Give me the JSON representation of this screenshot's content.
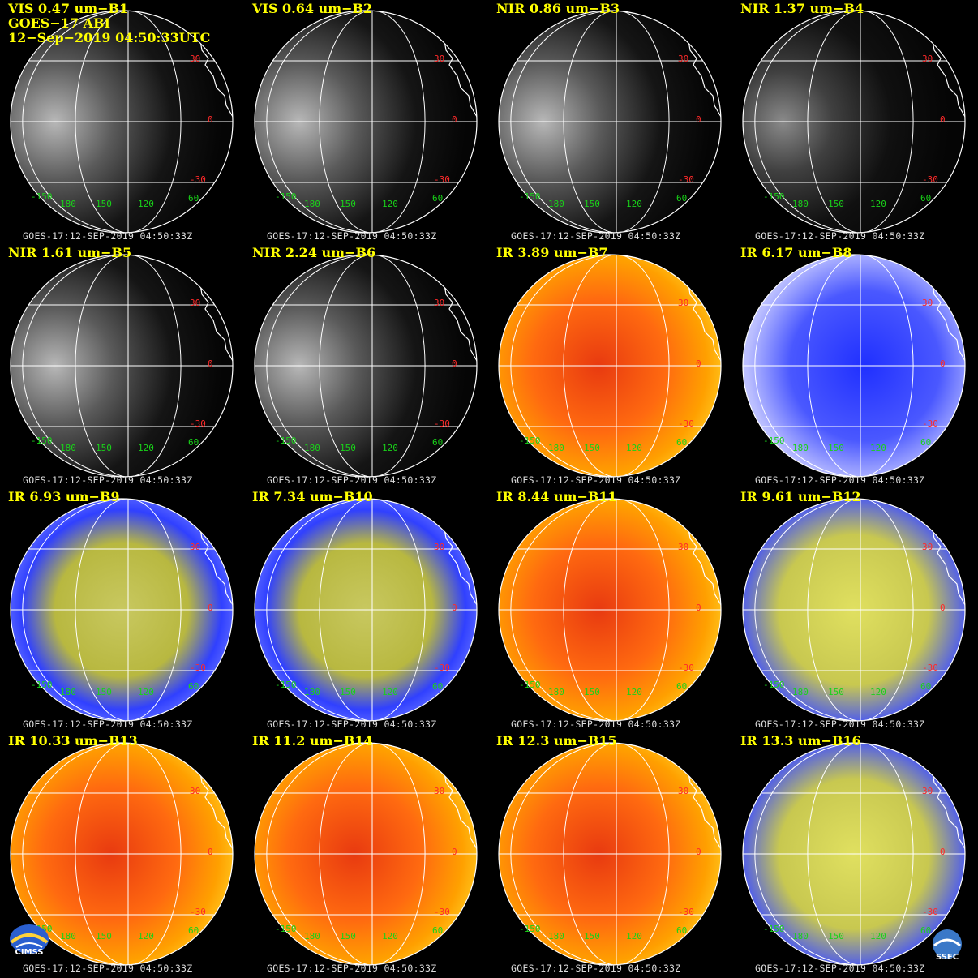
{
  "header": {
    "satellite": "GOES−17 ABI",
    "datetime": "12−Sep−2019 04:50:33UTC"
  },
  "timestamp": "GOES-17:12-SEP-2019 04:50:33Z",
  "grid_labels": {
    "lat": [
      "30",
      "0",
      "-30"
    ],
    "lon": [
      "-150",
      "180",
      "150",
      "120",
      "60"
    ]
  },
  "panels": [
    {
      "label": "VIS 0.47 um−B1",
      "palette": "vis"
    },
    {
      "label": "VIS 0.64 um−B2",
      "palette": "vis"
    },
    {
      "label": "NIR 0.86 um−B3",
      "palette": "vis"
    },
    {
      "label": "NIR 1.37 um−B4",
      "palette": "visdark"
    },
    {
      "label": "NIR 1.61 um−B5",
      "palette": "vis"
    },
    {
      "label": "NIR 2.24 um−B6",
      "palette": "vis"
    },
    {
      "label": "IR 3.89 um−B7",
      "palette": "irwarm"
    },
    {
      "label": "IR 6.17 um−B8",
      "palette": "wv8"
    },
    {
      "label": "IR 6.93 um−B9",
      "palette": "wv"
    },
    {
      "label": "IR 7.34 um−B10",
      "palette": "wv"
    },
    {
      "label": "IR 8.44 um−B11",
      "palette": "irwarm"
    },
    {
      "label": "IR 9.61 um−B12",
      "palette": "wv12"
    },
    {
      "label": "IR 10.33 um−B13",
      "palette": "irwarm"
    },
    {
      "label": "IR 11.2 um−B14",
      "palette": "irwarm"
    },
    {
      "label": "IR 12.3 um−B15",
      "palette": "irwarm"
    },
    {
      "label": "IR 13.3 um−B16",
      "palette": "wv12"
    }
  ],
  "logos": {
    "left": "CIMSS",
    "right": "SSEC"
  },
  "colors": {
    "label": "#ffff00",
    "lat_label": "#ff2a2a",
    "lon_label": "#19d219",
    "grid": "#ffffff"
  }
}
